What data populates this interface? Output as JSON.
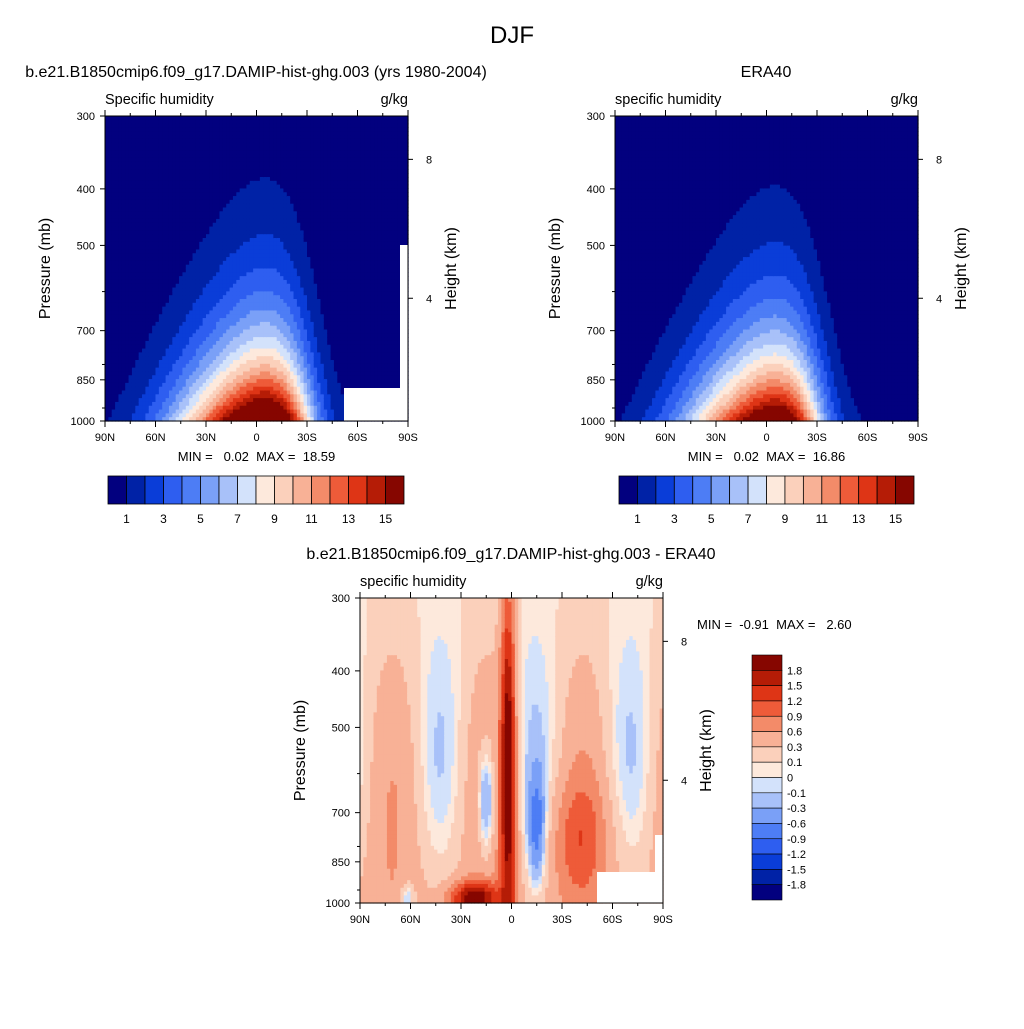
{
  "figure": {
    "title": "DJF"
  },
  "chart_data": [
    {
      "type": "heatmap",
      "title": "b.e21.B1850cmip6.f09_g17.DAMIP-hist-ghg.003 (yrs 1980-2004)",
      "variable_label": "Specific humidity",
      "units": "g/kg",
      "ylabel": "Pressure (mb)",
      "ylabel_right": "Height (km)",
      "xticks": [
        "90N",
        "60N",
        "30N",
        "0",
        "30S",
        "60S",
        "90S"
      ],
      "yticks": [
        300,
        400,
        500,
        700,
        850,
        1000
      ],
      "yticks_right": [
        8,
        4
      ],
      "xlim": [
        90,
        -90
      ],
      "ylim": [
        1000,
        300
      ],
      "stats": {
        "min": "0.02",
        "max": "18.59"
      },
      "stats_text": "MIN =   0.02  MAX =  18.59",
      "colorbar_labels": [
        "1",
        "3",
        "5",
        "7",
        "9",
        "11",
        "13",
        "15"
      ],
      "colorbar_levels": [
        1,
        2,
        3,
        4,
        5,
        6,
        7,
        8,
        9,
        10,
        11,
        12,
        13,
        14,
        15,
        16
      ],
      "peak_center_latitude": -5,
      "peak_value": 18.59
    },
    {
      "type": "heatmap",
      "title": "ERA40",
      "variable_label": "specific humidity",
      "units": "g/kg",
      "ylabel": "Pressure (mb)",
      "ylabel_right": "Height (km)",
      "xticks": [
        "90N",
        "60N",
        "30N",
        "0",
        "30S",
        "60S",
        "90S"
      ],
      "yticks": [
        300,
        400,
        500,
        700,
        850,
        1000
      ],
      "yticks_right": [
        8,
        4
      ],
      "xlim": [
        90,
        -90
      ],
      "ylim": [
        1000,
        300
      ],
      "stats": {
        "min": "0.02",
        "max": "16.86"
      },
      "stats_text": "MIN =   0.02  MAX =  16.86",
      "colorbar_labels": [
        "1",
        "3",
        "5",
        "7",
        "9",
        "11",
        "13",
        "15"
      ],
      "colorbar_levels": [
        1,
        2,
        3,
        4,
        5,
        6,
        7,
        8,
        9,
        10,
        11,
        12,
        13,
        14,
        15,
        16
      ],
      "peak_center_latitude": -5,
      "peak_value": 16.86
    },
    {
      "type": "heatmap",
      "title": "b.e21.B1850cmip6.f09_g17.DAMIP-hist-ghg.003 - ERA40",
      "variable_label": "specific humidity",
      "units": "g/kg",
      "ylabel": "Pressure (mb)",
      "ylabel_right": "Height (km)",
      "xticks": [
        "90N",
        "60N",
        "30N",
        "0",
        "30S",
        "60S",
        "90S"
      ],
      "yticks": [
        300,
        400,
        500,
        700,
        850,
        1000
      ],
      "yticks_right": [
        8,
        4
      ],
      "xlim": [
        90,
        -90
      ],
      "ylim": [
        1000,
        300
      ],
      "stats": {
        "min": "-0.91",
        "max": "2.60"
      },
      "stats_text": "MIN =  -0.91  MAX =   2.60",
      "colorbar_labels": [
        "1.8",
        "1.5",
        "1.2",
        "0.9",
        "0.6",
        "0.3",
        "0.1",
        "0",
        "-0.1",
        "-0.3",
        "-0.6",
        "-0.9",
        "-1.2",
        "-1.5",
        "-1.8"
      ],
      "colorbar_levels": [
        -1.8,
        -1.5,
        -1.2,
        -0.9,
        -0.6,
        -0.3,
        -0.1,
        0,
        0.1,
        0.3,
        0.6,
        0.9,
        1.2,
        1.5,
        1.8
      ]
    }
  ],
  "colors": {
    "sequential": [
      "#02007f",
      "#0022a6",
      "#0a3dd8",
      "#2e5ef0",
      "#4d7df5",
      "#7aa0f7",
      "#a8c1f9",
      "#d3e2fb",
      "#fde9dc",
      "#fbd0bb",
      "#f8b196",
      "#f38b69",
      "#ee5b39",
      "#de3516",
      "#b51c06",
      "#860600"
    ],
    "diverging": [
      "#02007f",
      "#0022a6",
      "#0a3dd8",
      "#2e5ef0",
      "#4d7df5",
      "#7aa0f7",
      "#a8c1f9",
      "#d3e2fb",
      "#fde9dc",
      "#fbd0bb",
      "#f8b196",
      "#f38b69",
      "#ee5b39",
      "#de3516",
      "#b51c06",
      "#860600"
    ]
  }
}
